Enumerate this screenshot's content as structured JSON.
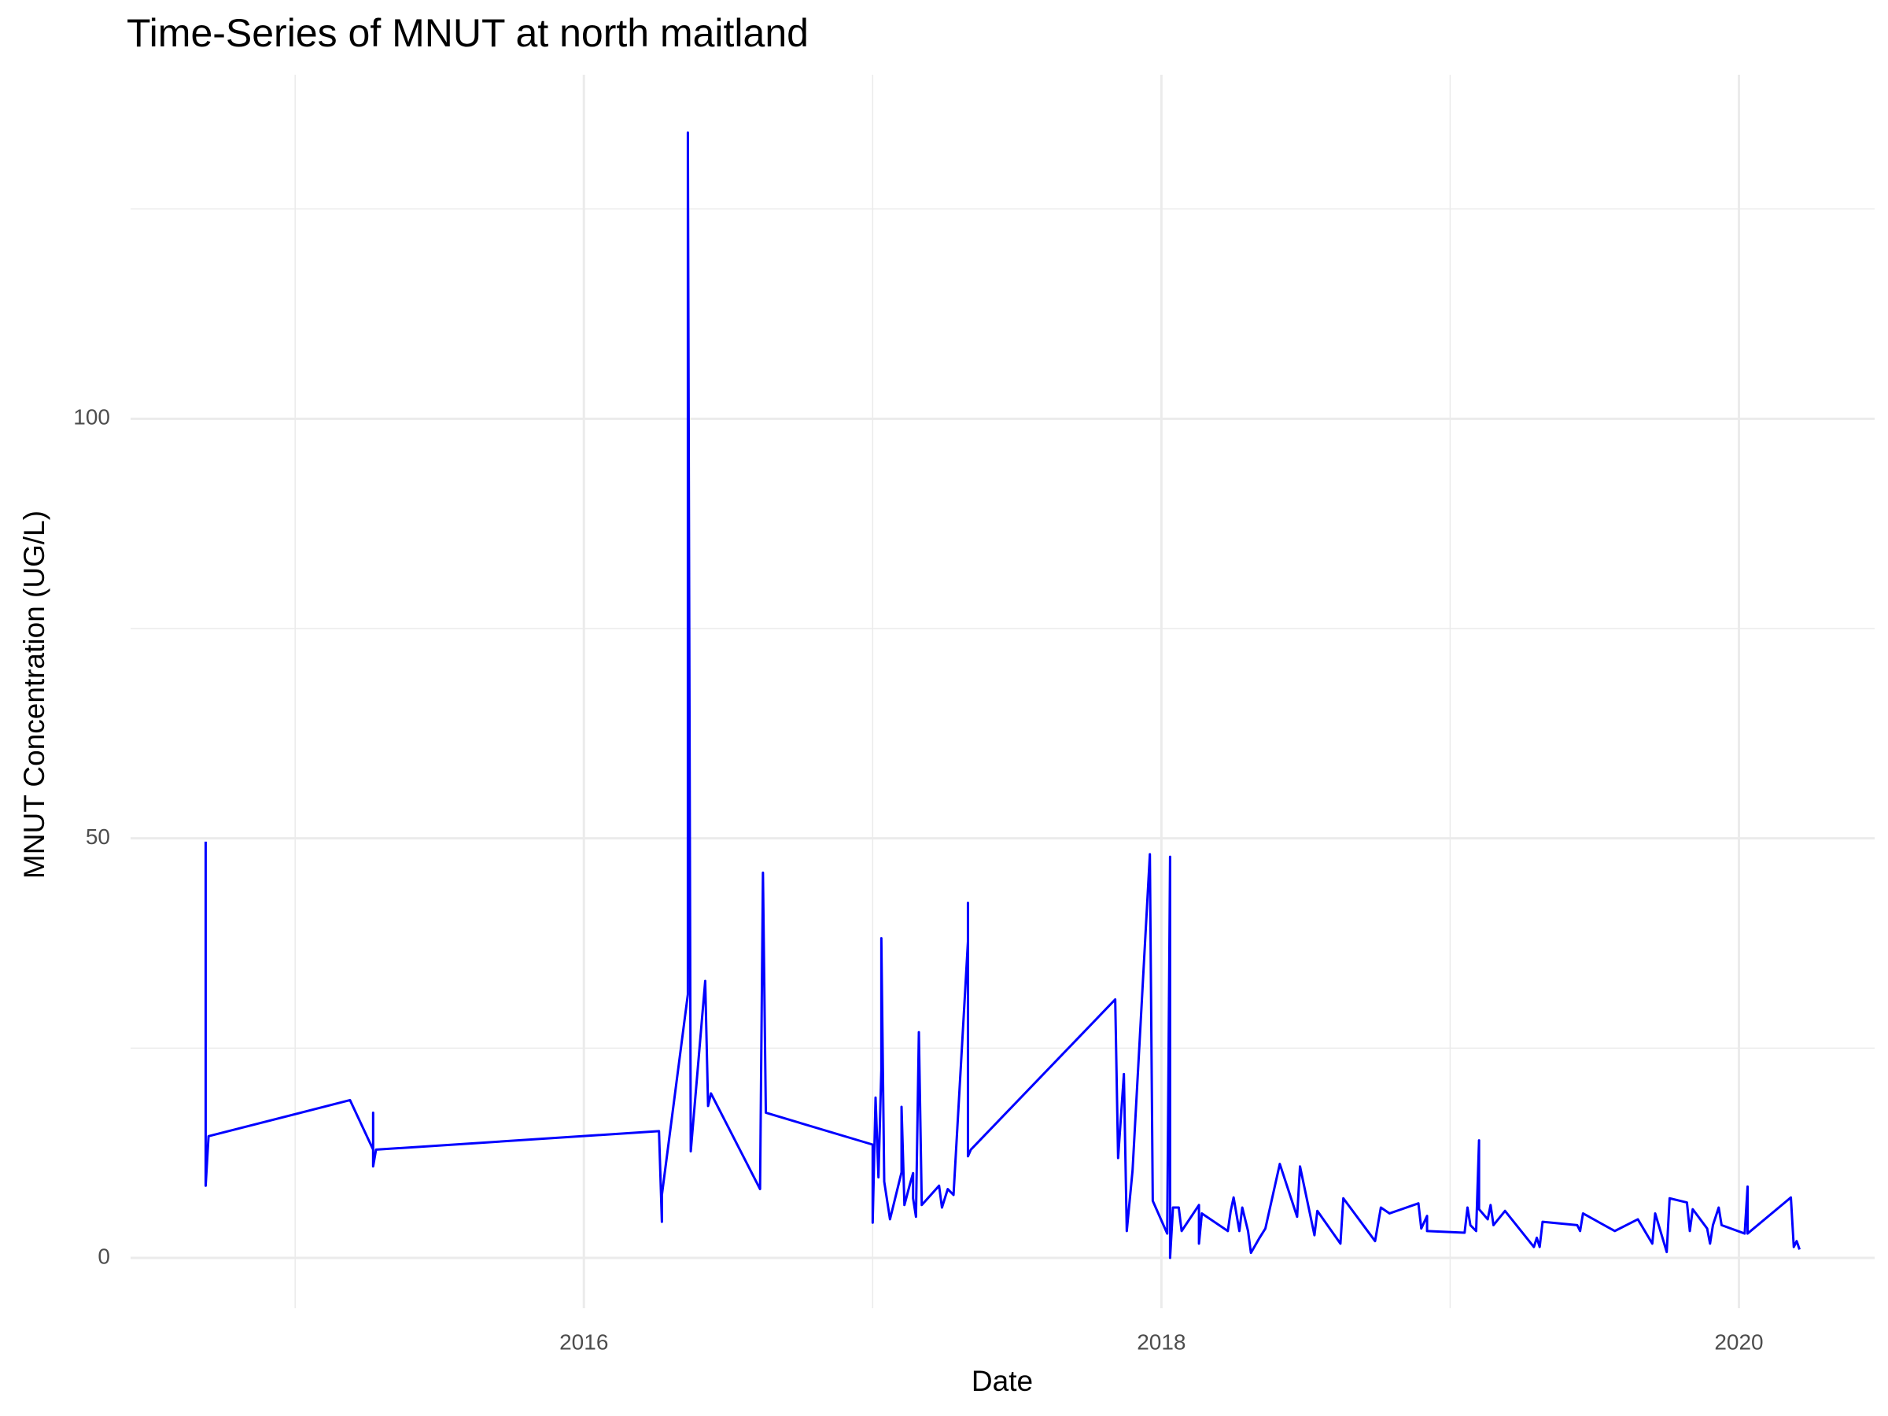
{
  "chart_data": {
    "type": "line",
    "title": "Time-Series of MNUT at north maitland",
    "x_label": "Date",
    "y_label": "MNUT Concentration (UG/L)",
    "color": "#0000ff",
    "grid": true,
    "xlim": [
      2014.43,
      2020.47
    ],
    "xticks": [
      2016,
      2018,
      2020
    ],
    "ylim": [
      -6,
      141
    ],
    "yticks": [
      0,
      50,
      100
    ],
    "x": [
      2014.69,
      2014.69,
      2014.7,
      2015.19,
      2015.27,
      2015.27,
      2015.27,
      2015.28,
      2016.26,
      2016.27,
      2016.27,
      2016.36,
      2016.36,
      2016.37,
      2016.42,
      2016.43,
      2016.44,
      2016.61,
      2016.62,
      2016.63,
      2017.0,
      2017.0,
      2017.01,
      2017.02,
      2017.03,
      2017.03,
      2017.04,
      2017.06,
      2017.1,
      2017.1,
      2017.11,
      2017.13,
      2017.14,
      2017.14,
      2017.15,
      2017.16,
      2017.17,
      2017.23,
      2017.24,
      2017.26,
      2017.28,
      2017.33,
      2017.33,
      2017.33,
      2017.34,
      2017.84,
      2017.85,
      2017.87,
      2017.88,
      2017.9,
      2017.96,
      2017.97,
      2018.02,
      2018.03,
      2018.03,
      2018.04,
      2018.06,
      2018.07,
      2018.13,
      2018.13,
      2018.14,
      2018.23,
      2018.24,
      2018.25,
      2018.27,
      2018.28,
      2018.3,
      2018.31,
      2018.34,
      2018.36,
      2018.41,
      2018.47,
      2018.48,
      2018.53,
      2018.54,
      2018.62,
      2018.63,
      2018.74,
      2018.76,
      2018.79,
      2018.89,
      2018.9,
      2018.92,
      2018.92,
      2019.05,
      2019.06,
      2019.07,
      2019.09,
      2019.1,
      2019.1,
      2019.13,
      2019.14,
      2019.15,
      2019.19,
      2019.29,
      2019.3,
      2019.31,
      2019.32,
      2019.44,
      2019.45,
      2019.46,
      2019.57,
      2019.65,
      2019.7,
      2019.71,
      2019.75,
      2019.76,
      2019.82,
      2019.83,
      2019.84,
      2019.89,
      2019.9,
      2019.91,
      2019.93,
      2019.94,
      2020.02,
      2020.03,
      2020.03,
      2020.18,
      2020.19,
      2020.2,
      2020.21
    ],
    "values": [
      49.6,
      8.6,
      14.5,
      18.8,
      12.9,
      17.3,
      10.9,
      12.9,
      15.1,
      4.3,
      7.5,
      31.4,
      134.1,
      12.7,
      33.0,
      18.1,
      19.6,
      8.2,
      45.9,
      17.3,
      13.5,
      4.2,
      19.1,
      9.6,
      22.4,
      38.1,
      9.1,
      4.6,
      10.2,
      18.0,
      6.3,
      8.9,
      10.1,
      7.1,
      4.9,
      26.9,
      6.3,
      8.6,
      6.0,
      8.2,
      7.5,
      37.7,
      42.3,
      12.1,
      12.9,
      30.8,
      11.9,
      21.9,
      3.2,
      10.4,
      48.1,
      6.8,
      2.9,
      47.8,
      0,
      6.0,
      6.0,
      3.2,
      6.3,
      1.7,
      5.3,
      3.2,
      5.6,
      7.2,
      3.2,
      6.0,
      3.2,
      0.6,
      2.4,
      3.5,
      11.2,
      4.9,
      10.9,
      2.7,
      5.6,
      1.7,
      7.1,
      2.0,
      6.0,
      5.3,
      6.5,
      3.5,
      5.0,
      3.2,
      3.0,
      6.0,
      3.9,
      3.2,
      14.0,
      5.8,
      4.6,
      6.3,
      3.9,
      5.6,
      1.3,
      2.4,
      1.3,
      4.3,
      3.9,
      3.2,
      5.3,
      3.2,
      4.6,
      1.7,
      5.3,
      0.7,
      7.1,
      6.6,
      3.2,
      5.8,
      3.5,
      1.7,
      3.9,
      6.0,
      3.9,
      2.9,
      8.5,
      2.9,
      7.2,
      1.3,
      2.0,
      1.0
    ]
  }
}
